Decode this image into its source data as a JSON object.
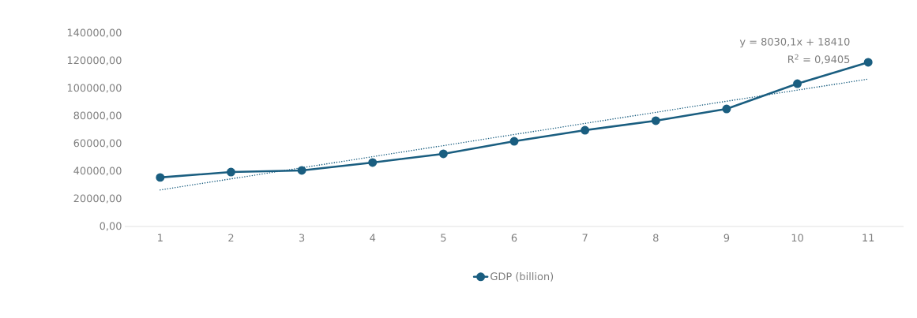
{
  "chart_data": {
    "type": "line",
    "x": [
      1,
      2,
      3,
      4,
      5,
      6,
      7,
      8,
      9,
      10,
      11
    ],
    "series": [
      {
        "name": "GDP (billion)",
        "color": "#1a5e80",
        "values": [
          35500,
          39400,
          40600,
          46300,
          52600,
          61700,
          69700,
          76600,
          85100,
          103400,
          118900
        ],
        "marker": "circle",
        "line_style": "solid"
      },
      {
        "type": "line",
        "color": "#1a5e80",
        "x": [
          1,
          11
        ],
        "values": [
          26440.1,
          106741.1
        ],
        "marker": "none",
        "line_style": "dotted"
      }
    ],
    "xlim": [
      0.5,
      11.5
    ],
    "xticks": [
      1,
      2,
      3,
      4,
      5,
      6,
      7,
      8,
      9,
      10,
      11
    ],
    "ylim": [
      0,
      140000
    ],
    "yticks": [
      {
        "value": 0,
        "label": "0,00"
      },
      {
        "value": 20000,
        "label": "20000,00"
      },
      {
        "value": 40000,
        "label": "40000,00"
      },
      {
        "value": 60000,
        "label": "60000,00"
      },
      {
        "value": 80000,
        "label": "80000,00"
      },
      {
        "value": 100000,
        "label": "100000,00"
      },
      {
        "value": 120000,
        "label": "120000,00"
      },
      {
        "value": 140000,
        "label": "140000,00"
      }
    ],
    "annotations": [
      "y = 8030,1x + 18410",
      "R$^{2}$ = 0,9405"
    ],
    "grid": false,
    "legend": "bottom"
  }
}
